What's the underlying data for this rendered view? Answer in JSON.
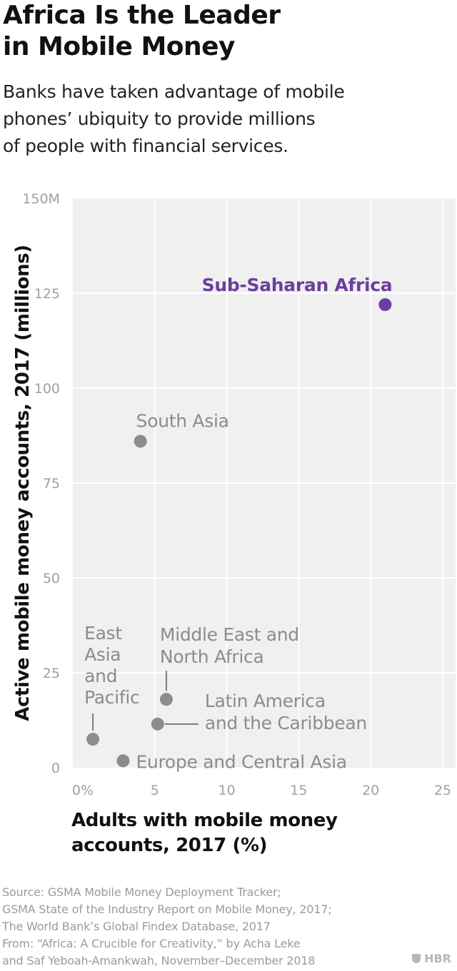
{
  "title_lines": [
    "Africa Is the Leader",
    "in Mobile Money"
  ],
  "subtitle_lines": [
    "Banks have taken advantage of mobile",
    "phones’ ubiquity to provide millions",
    "of people with financial services."
  ],
  "chart_data": {
    "type": "scatter",
    "xlabel_lines": [
      "Adults with mobile money",
      "accounts, 2017 (%)"
    ],
    "ylabel": "Active mobile money accounts, 2017 (millions)",
    "xlim": [
      0,
      25
    ],
    "ylim": [
      0,
      150
    ],
    "x_ticks": [
      {
        "value": 0,
        "label": "0%"
      },
      {
        "value": 5,
        "label": "5"
      },
      {
        "value": 10,
        "label": "10"
      },
      {
        "value": 15,
        "label": "15"
      },
      {
        "value": 20,
        "label": "20"
      },
      {
        "value": 25,
        "label": "25"
      }
    ],
    "y_ticks": [
      {
        "value": 0,
        "label": "0"
      },
      {
        "value": 25,
        "label": "25"
      },
      {
        "value": 50,
        "label": "50"
      },
      {
        "value": 75,
        "label": "75"
      },
      {
        "value": 100,
        "label": "100"
      },
      {
        "value": 125,
        "label": "125"
      },
      {
        "value": 150,
        "label": "150M"
      }
    ],
    "grid": true,
    "colors": {
      "highlight": "#6b3fa0",
      "point": "#8c8c8c",
      "label": "#8c8c8c",
      "grid": "#ffffff",
      "plot_bg": "#f0f0f0",
      "tick": "#a0a0a0"
    },
    "points": [
      {
        "name": "Sub-Saharan Africa",
        "label_lines": [
          "Sub-Saharan Africa"
        ],
        "x": 21.0,
        "y": 122,
        "highlight": true
      },
      {
        "name": "South Asia",
        "label_lines": [
          "South Asia"
        ],
        "x": 4.0,
        "y": 86,
        "highlight": false
      },
      {
        "name": "Middle East and North Africa",
        "label_lines": [
          "Middle East and",
          "North Africa"
        ],
        "x": 5.8,
        "y": 18,
        "highlight": false
      },
      {
        "name": "Latin America and the Caribbean",
        "label_lines": [
          "Latin America",
          "and the Caribbean"
        ],
        "x": 5.2,
        "y": 11.5,
        "highlight": false
      },
      {
        "name": "East Asia and Pacific",
        "label_lines": [
          "East",
          "Asia",
          "and",
          "Pacific"
        ],
        "x": 0.7,
        "y": 7.5,
        "highlight": false
      },
      {
        "name": "Europe and Central Asia",
        "label_lines": [
          "Europe and Central Asia"
        ],
        "x": 2.8,
        "y": 1.8,
        "highlight": false
      }
    ]
  },
  "footer_lines": [
    "Source: GSMA Mobile Money Deployment Tracker;",
    "GSMA State of the Industry Report on Mobile Money, 2017;",
    "The World Bank’s Global Findex Database, 2017",
    "From: “Africa: A Crucible for Creativity,” by Acha Leke",
    "and Saf Yeboah-Amankwah, November–December 2018"
  ],
  "brand": "HBR"
}
